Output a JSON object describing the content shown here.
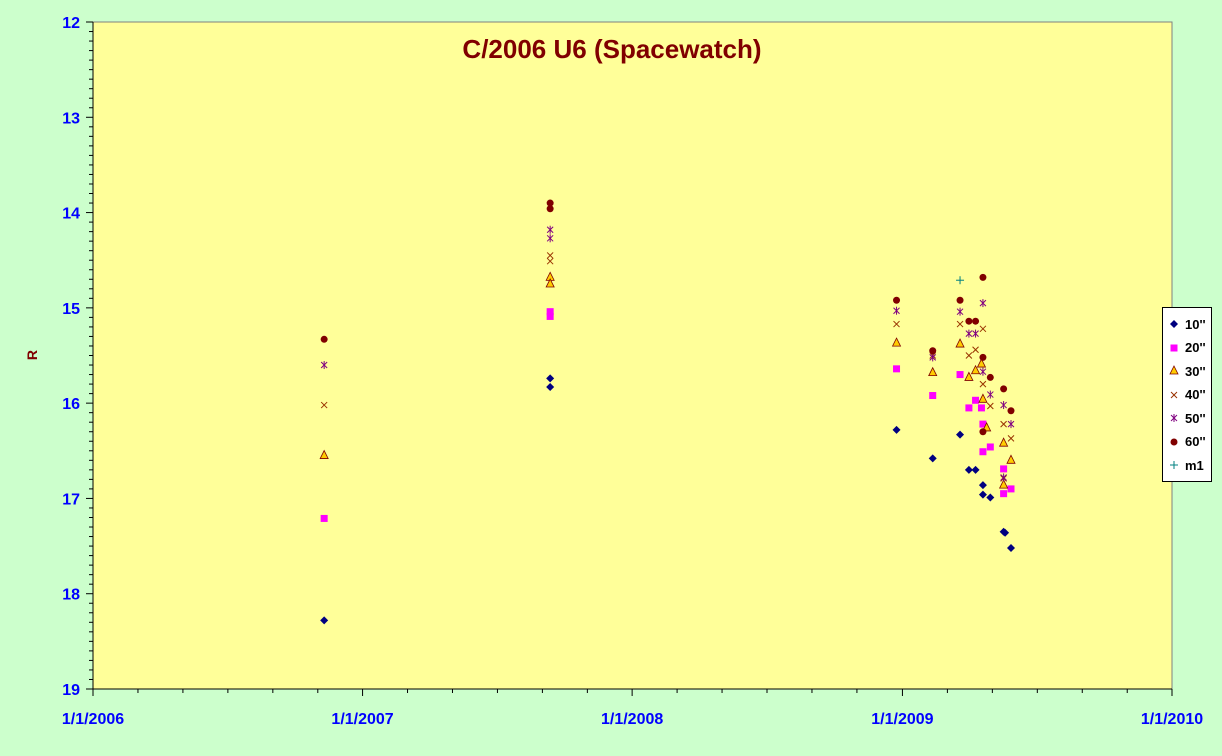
{
  "chart_data": {
    "type": "scatter",
    "title": "C/2006 U6 (Spacewatch)",
    "ylabel": "R",
    "xlabel": "",
    "x_tick_labels": [
      "1/1/2006",
      "1/1/2007",
      "1/1/2008",
      "1/1/2009",
      "1/1/2010"
    ],
    "y_tick_labels": [
      "12",
      "13",
      "14",
      "15",
      "16",
      "17",
      "18",
      "19"
    ],
    "x_range": [
      "2006-01-01",
      "2010-01-01"
    ],
    "ylim": [
      12,
      19
    ],
    "y_inverted": true,
    "grid": false,
    "legend_position": "right",
    "colors": {
      "plot_bg": "#ffff99",
      "page_bg": "#ccffcc",
      "title": "#800000",
      "ylabel": "#800000",
      "tick_labels": "#0000ff",
      "axis": "#000000"
    },
    "series": [
      {
        "name": "10''",
        "marker": "diamond",
        "color": "#000080",
        "points": [
          [
            "2006-11-10",
            18.28
          ],
          [
            "2007-09-12",
            15.74
          ],
          [
            "2007-09-12",
            15.83
          ],
          [
            "2008-12-24",
            16.28
          ],
          [
            "2009-02-11",
            16.58
          ],
          [
            "2009-03-20",
            16.33
          ],
          [
            "2009-04-01",
            16.7
          ],
          [
            "2009-04-10",
            16.7
          ],
          [
            "2009-04-20",
            16.86
          ],
          [
            "2009-04-20",
            16.96
          ],
          [
            "2009-04-30",
            16.99
          ],
          [
            "2009-05-18",
            17.35
          ],
          [
            "2009-05-20",
            17.36
          ],
          [
            "2009-05-28",
            17.52
          ]
        ]
      },
      {
        "name": "20''",
        "marker": "square",
        "color": "#ff00ff",
        "points": [
          [
            "2006-11-10",
            17.21
          ],
          [
            "2007-09-12",
            15.04
          ],
          [
            "2007-09-12",
            15.09
          ],
          [
            "2008-12-24",
            15.64
          ],
          [
            "2009-02-11",
            15.92
          ],
          [
            "2009-03-20",
            15.7
          ],
          [
            "2009-04-01",
            16.05
          ],
          [
            "2009-04-10",
            15.97
          ],
          [
            "2009-04-18",
            16.05
          ],
          [
            "2009-04-20",
            16.22
          ],
          [
            "2009-04-20",
            16.51
          ],
          [
            "2009-04-30",
            16.46
          ],
          [
            "2009-05-18",
            16.69
          ],
          [
            "2009-05-18",
            16.95
          ],
          [
            "2009-05-28",
            16.9
          ]
        ]
      },
      {
        "name": "30''",
        "marker": "triangle",
        "color": "#ffcc00",
        "stroke": "#800000",
        "points": [
          [
            "2006-11-10",
            16.55
          ],
          [
            "2007-09-12",
            14.68
          ],
          [
            "2007-09-12",
            14.75
          ],
          [
            "2008-12-24",
            15.37
          ],
          [
            "2009-02-11",
            15.68
          ],
          [
            "2009-03-20",
            15.38
          ],
          [
            "2009-04-01",
            15.73
          ],
          [
            "2009-04-10",
            15.66
          ],
          [
            "2009-04-18",
            15.59
          ],
          [
            "2009-04-20",
            15.96
          ],
          [
            "2009-04-25",
            16.26
          ],
          [
            "2009-05-18",
            16.42
          ],
          [
            "2009-05-18",
            16.86
          ],
          [
            "2009-05-28",
            16.6
          ]
        ]
      },
      {
        "name": "40''",
        "marker": "x",
        "color": "#993300",
        "points": [
          [
            "2006-11-10",
            16.02
          ],
          [
            "2007-09-12",
            14.45
          ],
          [
            "2007-09-12",
            14.51
          ],
          [
            "2008-12-24",
            15.17
          ],
          [
            "2009-02-11",
            15.5
          ],
          [
            "2009-03-20",
            15.17
          ],
          [
            "2009-04-01",
            15.5
          ],
          [
            "2009-04-10",
            15.44
          ],
          [
            "2009-04-20",
            15.22
          ],
          [
            "2009-04-20",
            15.8
          ],
          [
            "2009-04-30",
            16.03
          ],
          [
            "2009-05-18",
            16.22
          ],
          [
            "2009-05-18",
            16.79
          ],
          [
            "2009-05-28",
            16.37
          ]
        ]
      },
      {
        "name": "50''",
        "marker": "asterisk",
        "color": "#800080",
        "points": [
          [
            "2006-11-10",
            15.6
          ],
          [
            "2007-09-12",
            14.18
          ],
          [
            "2007-09-12",
            14.27
          ],
          [
            "2008-12-24",
            15.03
          ],
          [
            "2009-02-11",
            15.52
          ],
          [
            "2009-03-20",
            15.04
          ],
          [
            "2009-04-01",
            15.27
          ],
          [
            "2009-04-10",
            15.27
          ],
          [
            "2009-04-20",
            14.95
          ],
          [
            "2009-04-20",
            15.67
          ],
          [
            "2009-04-30",
            15.91
          ],
          [
            "2009-05-18",
            16.02
          ],
          [
            "2009-05-18",
            16.78
          ],
          [
            "2009-05-28",
            16.22
          ]
        ]
      },
      {
        "name": "60''",
        "marker": "circle",
        "color": "#800000",
        "points": [
          [
            "2006-11-10",
            15.33
          ],
          [
            "2007-09-12",
            13.9
          ],
          [
            "2007-09-12",
            13.96
          ],
          [
            "2008-12-24",
            14.92
          ],
          [
            "2009-02-11",
            15.45
          ],
          [
            "2009-03-20",
            14.92
          ],
          [
            "2009-04-01",
            15.14
          ],
          [
            "2009-04-10",
            15.14
          ],
          [
            "2009-04-20",
            14.68
          ],
          [
            "2009-04-20",
            15.52
          ],
          [
            "2009-04-30",
            15.73
          ],
          [
            "2009-05-18",
            15.85
          ],
          [
            "2009-05-28",
            16.08
          ],
          [
            "2009-04-20",
            16.3
          ]
        ]
      },
      {
        "name": "m1",
        "marker": "plus",
        "color": "#008080",
        "points": [
          [
            "2009-03-20",
            14.71
          ]
        ]
      }
    ]
  }
}
